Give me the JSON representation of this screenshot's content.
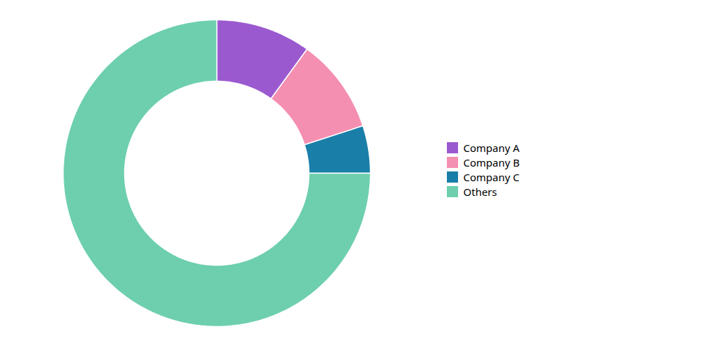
{
  "chart_data": {
    "type": "pie",
    "categories": [
      "Company A",
      "Company B",
      "Company C",
      "Others"
    ],
    "values": [
      10,
      10,
      5,
      75
    ],
    "colors": [
      "#9b59d0",
      "#f48fb1",
      "#1a7fa8",
      "#6dcfad"
    ],
    "legend": "right"
  }
}
